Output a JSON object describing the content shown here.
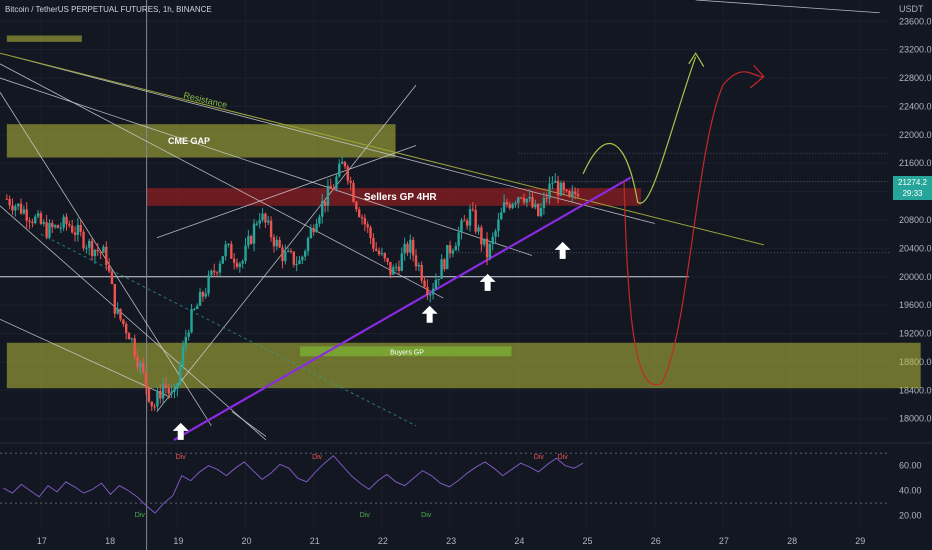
{
  "header": {
    "symbol_title": "Bitcoin / TetherUS PERPETUAL FUTURES, 1h, BINANCE"
  },
  "price_axis": {
    "currency": "USDT",
    "last_price": "21274.2",
    "countdown": "29:33"
  },
  "annotations": {
    "cme_gap": "CME GAP",
    "sellers": "Sellers GP 4HR",
    "buyers": "Buyers GP",
    "resistance": "Resistance",
    "div_label": "Div"
  },
  "colors": {
    "background": "#131722",
    "bull": "#26a69a",
    "bear": "#ef5350",
    "zone_yellow": "#b8c03a",
    "zone_red": "#8b1f22",
    "zone_green": "#2e8b2a",
    "trendline_purple": "#8a2be2",
    "rsi_line": "#7e57c2"
  },
  "chart_data": {
    "type": "candlestick",
    "title": "Bitcoin / TetherUS PERPETUAL FUTURES, 1h, BINANCE",
    "y_unit": "USDT",
    "ylim": [
      17700,
      23900
    ],
    "y_ticks": [
      23600,
      23200,
      22800,
      22400,
      22000,
      21600,
      21200,
      20800,
      20400,
      20000,
      19600,
      19200,
      18800,
      18400,
      18000
    ],
    "x_ticks": [
      "17",
      "18",
      "19",
      "20",
      "21",
      "22",
      "23",
      "24",
      "25",
      "26",
      "27",
      "28",
      "29"
    ],
    "last_price": 21274.2,
    "price_path": [
      {
        "day": 16.5,
        "price": 21100
      },
      {
        "day": 16.8,
        "price": 20900
      },
      {
        "day": 17.1,
        "price": 20650
      },
      {
        "day": 17.4,
        "price": 20750
      },
      {
        "day": 17.7,
        "price": 20450
      },
      {
        "day": 17.95,
        "price": 20300
      },
      {
        "day": 18.1,
        "price": 19500
      },
      {
        "day": 18.3,
        "price": 19200
      },
      {
        "day": 18.5,
        "price": 18600
      },
      {
        "day": 18.65,
        "price": 18150
      },
      {
        "day": 18.8,
        "price": 18500
      },
      {
        "day": 18.95,
        "price": 18250
      },
      {
        "day": 19.15,
        "price": 19300
      },
      {
        "day": 19.4,
        "price": 19800
      },
      {
        "day": 19.7,
        "price": 20400
      },
      {
        "day": 19.95,
        "price": 20200
      },
      {
        "day": 20.2,
        "price": 20900
      },
      {
        "day": 20.55,
        "price": 20300
      },
      {
        "day": 20.8,
        "price": 20200
      },
      {
        "day": 21.05,
        "price": 20900
      },
      {
        "day": 21.3,
        "price": 21300
      },
      {
        "day": 21.45,
        "price": 21650
      },
      {
        "day": 21.6,
        "price": 21100
      },
      {
        "day": 21.9,
        "price": 20400
      },
      {
        "day": 22.15,
        "price": 20050
      },
      {
        "day": 22.4,
        "price": 20450
      },
      {
        "day": 22.7,
        "price": 19800
      },
      {
        "day": 23.0,
        "price": 20400
      },
      {
        "day": 23.3,
        "price": 20900
      },
      {
        "day": 23.55,
        "price": 20300
      },
      {
        "day": 23.8,
        "price": 21000
      },
      {
        "day": 24.05,
        "price": 21200
      },
      {
        "day": 24.3,
        "price": 20850
      },
      {
        "day": 24.5,
        "price": 21350
      },
      {
        "day": 24.75,
        "price": 21050
      },
      {
        "day": 24.9,
        "price": 21274.2
      }
    ],
    "zones": [
      {
        "label": "CME GAP",
        "from": 21680,
        "to": 22150,
        "start_day": 16.5,
        "end_day": 22.2
      },
      {
        "label": "Sellers GP 4HR",
        "from": 21000,
        "to": 21250,
        "start_day": 18.55,
        "end_day": 25.8
      },
      {
        "label": "Buyers GP",
        "from": 18880,
        "to": 19020,
        "start_day": 20.8,
        "end_day": 23.9
      },
      {
        "label": "",
        "from": 18430,
        "to": 19070,
        "start_day": 16.5,
        "end_day": 29.9
      },
      {
        "label": "",
        "from": 23310,
        "to": 23400,
        "start_day": 16.5,
        "end_day": 17.6
      }
    ],
    "horizontal_levels": [
      20000,
      21340,
      21740,
      20340
    ],
    "rsi": {
      "ylim": [
        10,
        75
      ],
      "y_ticks": [
        60,
        40,
        20
      ],
      "levels": [
        70,
        30
      ],
      "values": [
        42,
        38,
        45,
        40,
        35,
        44,
        39,
        47,
        43,
        38,
        41,
        46,
        37,
        44,
        40,
        35,
        28,
        22,
        30,
        36,
        52,
        48,
        55,
        60,
        57,
        52,
        58,
        63,
        56,
        49,
        54,
        61,
        58,
        50,
        47,
        55,
        62,
        68,
        60,
        52,
        46,
        41,
        48,
        53,
        47,
        44,
        50,
        56,
        52,
        46,
        43,
        48,
        54,
        59,
        63,
        58,
        52,
        57,
        62,
        59,
        55,
        61,
        66,
        60,
        58,
        62
      ]
    },
    "div_markers": [
      {
        "label": "Div",
        "day": 18.45,
        "kind": "bullish"
      },
      {
        "label": "Div",
        "day": 19.05,
        "kind": "bearish"
      },
      {
        "label": "Div",
        "day": 21.05,
        "kind": "bearish"
      },
      {
        "label": "Div",
        "day": 21.75,
        "kind": "bullish"
      },
      {
        "label": "Div",
        "day": 22.65,
        "kind": "bullish"
      },
      {
        "label": "Div",
        "day": 24.3,
        "kind": "bearish"
      },
      {
        "label": "Div",
        "day": 24.65,
        "kind": "bearish"
      }
    ]
  }
}
